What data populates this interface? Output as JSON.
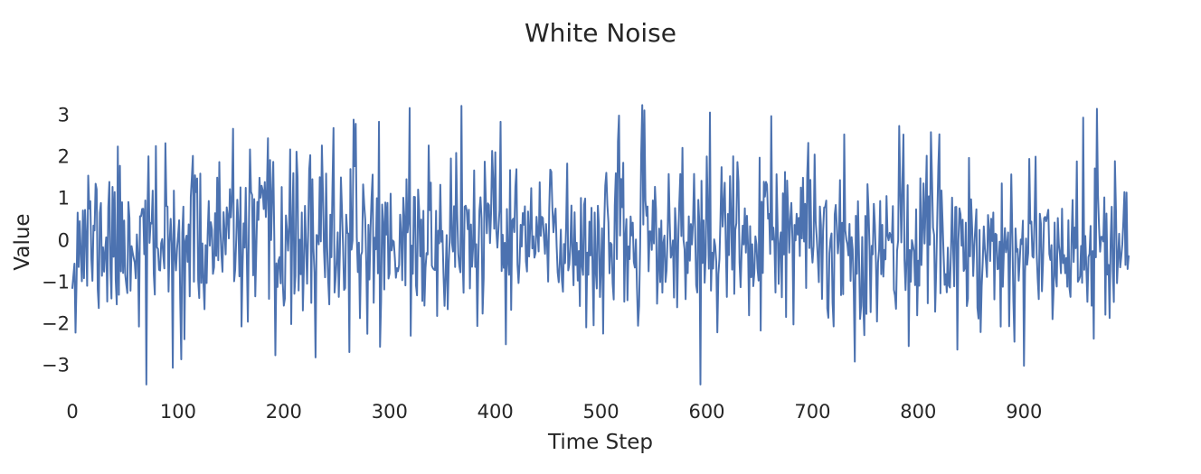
{
  "figure": {
    "background": "#ffffff",
    "text_color": "#262626"
  },
  "chart_data": {
    "type": "line",
    "title": "White Noise",
    "xlabel": "Time Step",
    "ylabel": "Value",
    "x_ticks": [
      0,
      100,
      200,
      300,
      400,
      500,
      600,
      700,
      800,
      900
    ],
    "y_ticks": [
      3,
      2,
      1,
      0,
      -1,
      -2,
      -3
    ],
    "xlim": [
      0,
      999
    ],
    "ylim": [
      -3.6,
      3.4
    ],
    "grid": false,
    "legend": "none",
    "spines": "none",
    "series": [
      {
        "name": "white noise",
        "color": "#4C72B0",
        "line_width": 2,
        "n": 1000,
        "mean": 0,
        "std": 1,
        "seed": 11,
        "clamp": [
          -3.45,
          3.25
        ],
        "anchors": [
          [
            70,
            -3.45
          ],
          [
            95,
            -3.05
          ],
          [
            192,
            -2.75
          ],
          [
            230,
            -2.8
          ],
          [
            247,
            2.7
          ],
          [
            290,
            2.85
          ],
          [
            319,
            3.18
          ],
          [
            368,
            3.23
          ],
          [
            405,
            2.85
          ],
          [
            603,
            3.07
          ],
          [
            610,
            -2.2
          ],
          [
            740,
            -2.9
          ],
          [
            782,
            2.75
          ],
          [
            812,
            2.6
          ],
          [
            820,
            2.55
          ],
          [
            900,
            -3.0
          ],
          [
            956,
            2.95
          ],
          [
            966,
            -2.35
          ]
        ]
      }
    ]
  }
}
